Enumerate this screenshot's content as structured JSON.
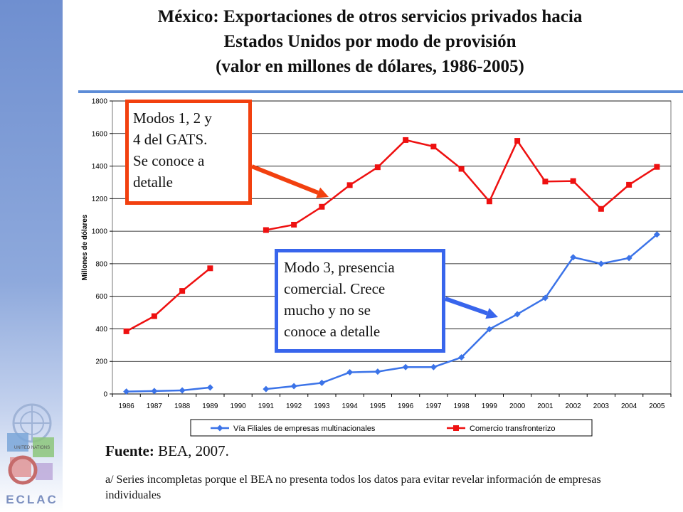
{
  "title_lines": [
    "México: Exportaciones de otros servicios privados hacia",
    "Estados Unidos por modo de provisión",
    "(valor en millones de dólares, 1986-2005)"
  ],
  "callouts": {
    "red": [
      "Modos 1, 2 y",
      "4 del GATS.",
      "Se conoce a",
      "detalle"
    ],
    "blue": [
      "Modo 3, presencia",
      "comercial. Crece",
      "mucho y no se",
      "conoce a detalle"
    ]
  },
  "source": {
    "label": "Fuente:",
    "text": "BEA, 2007."
  },
  "footnote": "a/ Series incompletas porque el BEA no presenta todos los datos para evitar revelar información de empresas   individuales",
  "logo": {
    "text": "ECLAC",
    "small_text": "UNITED NATIONS"
  },
  "colors": {
    "red": "#ee1010",
    "blue": "#3b73e8",
    "red_border": "#f2400f",
    "blue_border": "#3865ec",
    "sidebar": "#7f9dd8"
  },
  "chart_data": {
    "type": "line",
    "title": "",
    "xlabel": "",
    "ylabel": "Millones de dólares",
    "categories": [
      "1986",
      "1987",
      "1988",
      "1989",
      "1990",
      "1991",
      "1992",
      "1993",
      "1994",
      "1995",
      "1996",
      "1997",
      "1998",
      "1999",
      "2000",
      "2001",
      "2002",
      "2003",
      "2004",
      "2005"
    ],
    "ylim": [
      0,
      1800
    ],
    "yticks": [
      0,
      200,
      400,
      600,
      800,
      1000,
      1200,
      1400,
      1600,
      1800
    ],
    "grid": true,
    "legend_position": "bottom",
    "series": [
      {
        "name": "Vía Filiales de empresas multinacionales",
        "color": "#3b73e8",
        "marker": "diamond",
        "values": [
          15,
          18,
          22,
          40,
          null,
          30,
          48,
          68,
          133,
          137,
          165,
          165,
          225,
          398,
          490,
          590,
          840,
          800,
          835,
          980
        ]
      },
      {
        "name": "Comercio transfronterizo",
        "color": "#ee1010",
        "marker": "square",
        "values": [
          385,
          478,
          633,
          772,
          null,
          1007,
          1040,
          1150,
          1283,
          1393,
          1560,
          1520,
          1383,
          1183,
          1555,
          1305,
          1308,
          1137,
          1285,
          1395
        ]
      }
    ]
  }
}
